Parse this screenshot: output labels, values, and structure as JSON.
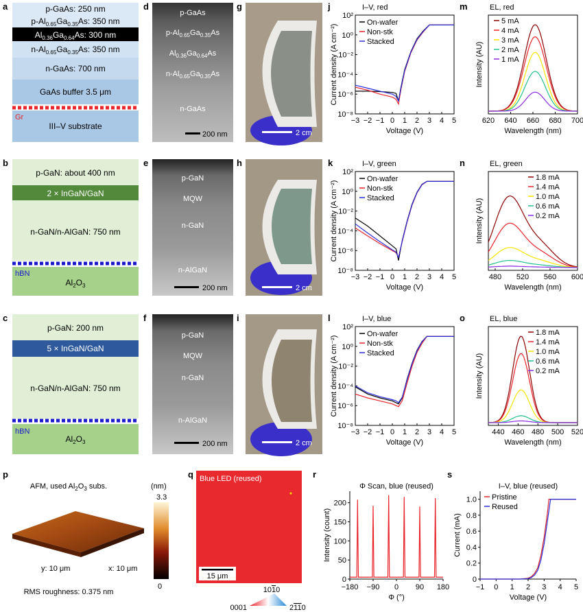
{
  "panel_letters": [
    "a",
    "b",
    "c",
    "d",
    "e",
    "f",
    "g",
    "h",
    "i",
    "j",
    "k",
    "l",
    "m",
    "n",
    "o",
    "p",
    "q",
    "r",
    "s"
  ],
  "a": {
    "layers": [
      "p-GaAs: 250 nm",
      "p-Al0.65Ga0.35As: 350 nm",
      "Al0.36Ga0.64As: 300 nm",
      "n-Al0.65Ga0.35As: 350 nm",
      "n-GaAs: 700 nm",
      "GaAs buffer 3.5 μm",
      "III–V substrate"
    ],
    "graphene_label": "Gr",
    "colors": {
      "light": "#dbe8f5",
      "mid": "#c4d9ee",
      "dark": "#a9c8e6",
      "black": "#000000",
      "red": "#e8232a"
    }
  },
  "b": {
    "layers": [
      "p-GaN: about 400 nm",
      "2 × InGaN/GaN",
      "n-GaN/n-AlGaN: 750 nm",
      "Al2O3"
    ],
    "hbn_label": "hBN",
    "colors": {
      "light": "#e2efd7",
      "dark": "#52893a",
      "sub": "#a6d18a",
      "hbn": "#1a1acc"
    }
  },
  "c": {
    "layers": [
      "p-GaN: 200 nm",
      "5 × InGaN/GaN",
      "n-GaN/n-AlGaN: 750 nm",
      "Al2O3"
    ],
    "hbn_label": "hBN",
    "colors": {
      "light": "#e2efd7",
      "dark": "#2e5a9c",
      "sub": "#a6d18a",
      "hbn": "#1a1acc"
    }
  },
  "d": {
    "labels": [
      "p-GaAs",
      "p-Al0.65Ga0.35As",
      "Al0.36Ga0.64As",
      "n-Al0.65Ga0.35As",
      "n-GaAs"
    ],
    "scalebar": "200 nm"
  },
  "e": {
    "labels": [
      "p-GaN",
      "MQW",
      "n-GaN",
      "n-AlGaN"
    ],
    "scalebar": "200 nm"
  },
  "f": {
    "labels": [
      "p-GaN",
      "MQW",
      "n-GaN",
      "n-AlGaN"
    ],
    "scalebar": "200 nm"
  },
  "photos": {
    "scalebar": "2 cm",
    "glove_color": "#3a2fc8"
  },
  "iv": {
    "xlabel": "Voltage (V)",
    "ylabel": "Current density (A cm⁻²)",
    "xticks": [
      "−3",
      "−2",
      "−1",
      "0",
      "1",
      "2",
      "3",
      "4",
      "5"
    ],
    "yticks": [
      "10²",
      "10⁰",
      "10⁻²",
      "10⁻⁴",
      "10⁻⁶",
      "10⁻⁸"
    ],
    "legend": [
      "On-wafer",
      "Non-stk",
      "Stacked"
    ],
    "colors": [
      "#000000",
      "#e8232a",
      "#2a2ad8"
    ]
  },
  "el": {
    "xlabel": "Wavelength (nm)",
    "ylabel": "Intensity (AU)",
    "colors": [
      "#8b0000",
      "#e8232a",
      "#f5e400",
      "#22c08a",
      "#8a2be2"
    ]
  },
  "chart_data": [
    {
      "type": "line",
      "panel": "j",
      "title": "I–V, red",
      "xlim": [
        -3,
        5
      ],
      "ylim": [
        1e-08,
        100
      ],
      "yscale": "log",
      "series": [
        {
          "name": "On-wafer",
          "x": [
            -3,
            -2,
            -1,
            0,
            0.3,
            0.5,
            0.7,
            1,
            1.5,
            2,
            2.5,
            3,
            3.5,
            5
          ],
          "y": [
            2e-06,
            2e-06,
            1.8e-06,
            1.5e-06,
            1.2e-06,
            2e-07,
            5e-06,
            0.0003,
            0.02,
            0.4,
            2.5,
            10,
            10,
            10
          ]
        },
        {
          "name": "Non-stk",
          "x": [
            -3,
            -2,
            -1,
            0,
            0.3,
            0.5,
            0.7,
            1,
            1.5,
            2,
            2.5,
            3,
            3.5,
            5
          ],
          "y": [
            5e-06,
            2.5e-06,
            1e-06,
            5e-07,
            3e-07,
            1e-07,
            3e-06,
            0.0002,
            0.015,
            0.3,
            2,
            10,
            10,
            10
          ]
        },
        {
          "name": "Stacked",
          "x": [
            -3,
            -2,
            -1,
            0,
            0.3,
            0.5,
            0.7,
            1,
            1.5,
            2,
            2.5,
            3,
            3.5,
            5
          ],
          "y": [
            8e-06,
            4e-06,
            2e-06,
            1e-06,
            6e-07,
            2e-07,
            4e-06,
            0.00025,
            0.018,
            0.35,
            2.2,
            10,
            10,
            10
          ]
        }
      ]
    },
    {
      "type": "line",
      "panel": "k",
      "title": "I–V, green",
      "xlim": [
        -3,
        5
      ],
      "ylim": [
        1e-08,
        100
      ],
      "yscale": "log",
      "series": [
        {
          "name": "On-wafer",
          "x": [
            -3,
            -2,
            -1,
            0,
            0.3,
            0.5,
            0.8,
            1.2,
            1.6,
            2,
            2.4,
            2.8,
            5
          ],
          "y": [
            0.002,
            0.0003,
            3e-05,
            3e-06,
            1.5e-06,
            1e-07,
            1e-05,
            0.001,
            0.05,
            0.8,
            5,
            10,
            10
          ]
        },
        {
          "name": "Non-stk",
          "x": [
            -3,
            -2,
            -1,
            0,
            0.3,
            0.5,
            0.8,
            1.2,
            1.6,
            2,
            2.4,
            2.8,
            5
          ],
          "y": [
            0.0002,
            3e-05,
            5e-06,
            1e-06,
            6e-07,
            2e-07,
            8e-06,
            0.0008,
            0.04,
            0.7,
            4.5,
            10,
            10
          ]
        },
        {
          "name": "Stacked",
          "x": [
            -3,
            -2,
            -1,
            0,
            0.3,
            0.5,
            0.8,
            1.2,
            1.6,
            2,
            2.4,
            2.8,
            5
          ],
          "y": [
            0.0005,
            6e-05,
            8e-06,
            1.2e-06,
            7e-07,
            2e-07,
            9e-06,
            0.0009,
            0.045,
            0.75,
            4.8,
            10,
            10
          ]
        }
      ]
    },
    {
      "type": "line",
      "panel": "l",
      "title": "I–V, blue",
      "xlim": [
        -3,
        5
      ],
      "ylim": [
        1e-08,
        100
      ],
      "yscale": "log",
      "series": [
        {
          "name": "On-wafer",
          "x": [
            -3,
            -2,
            -1,
            0,
            0.3,
            0.5,
            0.8,
            1.2,
            1.6,
            2,
            2.4,
            2.8,
            5
          ],
          "y": [
            8e-05,
            1.5e-05,
            6e-06,
            3e-06,
            2e-06,
            1.5e-06,
            6e-06,
            0.0005,
            0.02,
            0.4,
            3,
            10,
            10
          ]
        },
        {
          "name": "Non-stk",
          "x": [
            -3,
            -2,
            -1,
            0,
            0.3,
            0.5,
            0.8,
            1.2,
            1.6,
            2,
            2.4,
            2.8,
            5
          ],
          "y": [
            1.5e-05,
            6e-06,
            3e-06,
            1.5e-06,
            1e-06,
            8e-07,
            3e-06,
            0.0002,
            0.01,
            0.25,
            2,
            10,
            10
          ]
        },
        {
          "name": "Stacked",
          "x": [
            -3,
            -2,
            -1,
            0,
            0.3,
            0.5,
            0.8,
            1.2,
            1.6,
            2,
            2.4,
            2.8,
            5
          ],
          "y": [
            0.0001,
            2e-05,
            8e-06,
            4e-06,
            3e-06,
            2e-06,
            7e-06,
            0.0004,
            0.018,
            0.35,
            2.8,
            10,
            10
          ]
        }
      ]
    },
    {
      "type": "line",
      "panel": "m",
      "title": "EL, red",
      "xlim": [
        620,
        700
      ],
      "xticks": [
        620,
        640,
        660,
        680,
        700
      ],
      "peak": 662,
      "series": [
        {
          "name": "5 mA",
          "peak_intensity": 1.0,
          "width": 14
        },
        {
          "name": "4 mA",
          "peak_intensity": 0.86,
          "width": 14
        },
        {
          "name": "3 mA",
          "peak_intensity": 0.68,
          "width": 13
        },
        {
          "name": "2 mA",
          "peak_intensity": 0.46,
          "width": 13
        },
        {
          "name": "1 mA",
          "peak_intensity": 0.22,
          "width": 12
        }
      ]
    },
    {
      "type": "line",
      "panel": "n",
      "title": "EL, green",
      "xlim": [
        470,
        600
      ],
      "xticks": [
        480,
        520,
        560,
        600
      ],
      "peak": 500,
      "series": [
        {
          "name": "1.8 mA",
          "peak_intensity": 1.0,
          "width": 30
        },
        {
          "name": "1.4 mA",
          "peak_intensity": 0.62,
          "width": 30
        },
        {
          "name": "1.0 mA",
          "peak_intensity": 0.28,
          "width": 30
        },
        {
          "name": "0.6 mA",
          "peak_intensity": 0.1,
          "width": 30
        },
        {
          "name": "0.2 mA",
          "peak_intensity": 0.02,
          "width": 30
        }
      ]
    },
    {
      "type": "line",
      "panel": "o",
      "title": "EL, blue",
      "xlim": [
        430,
        520
      ],
      "xticks": [
        440,
        460,
        480,
        500,
        520
      ],
      "peak": 463,
      "series": [
        {
          "name": "1.8 mA",
          "peak_intensity": 1.0,
          "width": 12
        },
        {
          "name": "1.4 mA",
          "peak_intensity": 0.8,
          "width": 12
        },
        {
          "name": "1.0 mA",
          "peak_intensity": 0.38,
          "width": 12
        },
        {
          "name": "0.6 mA",
          "peak_intensity": 0.08,
          "width": 12
        },
        {
          "name": "0.2 mA",
          "peak_intensity": 0.02,
          "width": 12
        }
      ]
    },
    {
      "type": "line",
      "panel": "r",
      "title": "Φ Scan, blue (reused)",
      "xlabel": "Φ (°)",
      "ylabel": "Intensity (count)",
      "xlim": [
        -180,
        180
      ],
      "ylim": [
        0,
        230
      ],
      "xticks": [
        "−180",
        "−90",
        "0",
        "90",
        "180"
      ],
      "yticks": [
        "0",
        "50",
        "100",
        "150",
        "200"
      ],
      "peaks_x": [
        -150,
        -90,
        -30,
        30,
        90,
        150
      ],
      "peaks_y": [
        208,
        192,
        220,
        215,
        190,
        212
      ],
      "baseline": 5
    },
    {
      "type": "line",
      "panel": "s",
      "title": "I–V, blue (reused)",
      "xlabel": "Voltage (V)",
      "ylabel": "Current (mA)",
      "xlim": [
        -1,
        5
      ],
      "ylim": [
        0,
        1.1
      ],
      "xticks": [
        "−1",
        "0",
        "1",
        "2",
        "3",
        "4",
        "5"
      ],
      "yticks": [
        "0",
        "0.2",
        "0.4",
        "0.6",
        "0.8",
        "1.0"
      ],
      "series": [
        {
          "name": "Pristine",
          "x": [
            -1,
            1.5,
            2,
            2.2,
            2.4,
            2.6,
            2.8,
            3,
            3.2,
            3.3,
            5
          ],
          "y": [
            0,
            0,
            0.01,
            0.03,
            0.07,
            0.14,
            0.3,
            0.52,
            0.82,
            1.0,
            1.0
          ]
        },
        {
          "name": "Reused",
          "x": [
            -1,
            1.5,
            2,
            2.2,
            2.4,
            2.6,
            2.8,
            3,
            3.2,
            3.4,
            5
          ],
          "y": [
            0,
            0,
            0.005,
            0.02,
            0.05,
            0.11,
            0.24,
            0.44,
            0.72,
            1.0,
            1.0
          ]
        }
      ],
      "colors": [
        "#d8232a",
        "#2a2ad8"
      ]
    }
  ],
  "p": {
    "title": "AFM, used Al2O3 subs.",
    "xlabel": "x: 10 μm",
    "ylabel": "y: 10 μm",
    "rms": "RMS roughness: 0.375 nm",
    "unit": "(nm)",
    "cmax": "3.3",
    "cmin": "0"
  },
  "q": {
    "title": "Blue LED (reused)",
    "scalebar": "15 μm",
    "color": "#e8292e",
    "tri_top": "1010",
    "tri_left": "0001",
    "tri_right": "2110"
  }
}
